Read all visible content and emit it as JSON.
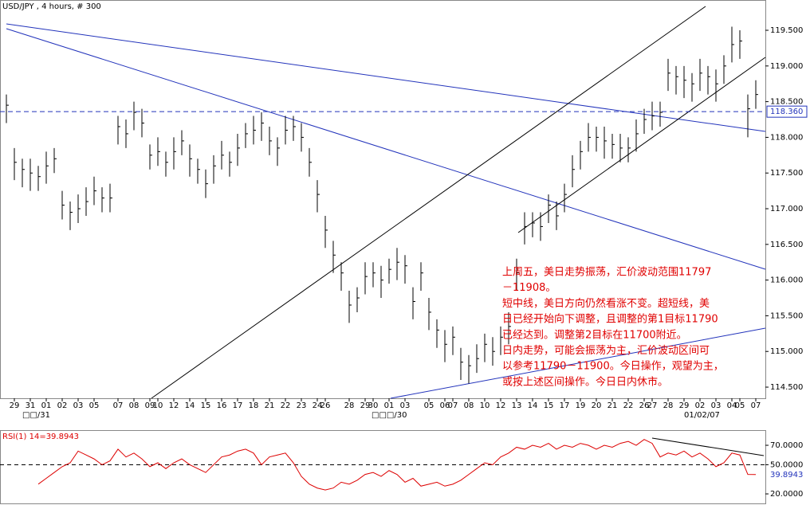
{
  "chart_data": [
    {
      "type": "ohlc",
      "title": "USD/JPY , 4 hours, # 300",
      "color": "#000000",
      "categories": [
        null,
        "29",
        null,
        "31",
        null,
        "01",
        null,
        "02",
        null,
        "03",
        null,
        "05",
        null,
        null,
        "07",
        null,
        "08",
        null,
        "09",
        "10",
        null,
        "12",
        null,
        "14",
        null,
        "15",
        null,
        "16",
        null,
        "17",
        null,
        "18",
        null,
        "21",
        null,
        "22",
        null,
        "23",
        null,
        "24",
        "26",
        null,
        null,
        "28",
        null,
        "29",
        "30",
        null,
        "01",
        null,
        "03",
        null,
        null,
        "05",
        null,
        "06",
        "07",
        null,
        "08",
        null,
        "10",
        null,
        "12",
        null,
        "13",
        null,
        "14",
        null,
        "15",
        null,
        "17",
        null,
        "19",
        null,
        "20",
        null,
        "21",
        null,
        "22",
        null,
        "26",
        "27",
        null,
        "28",
        null,
        "29",
        null,
        "02",
        null,
        "03",
        null,
        "04",
        "05",
        null,
        "07"
      ],
      "period_labels": [
        "□□/31",
        "□□□/30",
        "01/02/07"
      ],
      "high": [
        118.6,
        117.85,
        117.7,
        117.7,
        117.6,
        117.8,
        117.85,
        117.25,
        117.1,
        117.2,
        117.3,
        117.45,
        117.3,
        117.35,
        118.3,
        118.25,
        118.5,
        118.4,
        117.9,
        118.0,
        117.8,
        118.0,
        118.1,
        117.9,
        117.7,
        117.55,
        117.75,
        117.95,
        117.8,
        118.05,
        118.2,
        118.3,
        118.35,
        118.15,
        118.0,
        118.3,
        118.3,
        118.2,
        117.85,
        117.4,
        116.9,
        116.55,
        116.25,
        115.85,
        115.9,
        116.25,
        116.25,
        116.2,
        116.3,
        116.45,
        116.35,
        115.9,
        116.25,
        115.75,
        115.45,
        115.3,
        115.35,
        115.05,
        114.95,
        115.1,
        115.25,
        115.2,
        115.35,
        115.55,
        116.3,
        116.95,
        116.95,
        116.95,
        117.2,
        117.1,
        117.35,
        117.75,
        117.95,
        118.2,
        118.15,
        118.15,
        118.05,
        118.05,
        118.0,
        118.25,
        118.4,
        118.5,
        118.5,
        119.1,
        119.0,
        119.0,
        118.9,
        119.1,
        119.0,
        118.95,
        119.15,
        119.55,
        119.5,
        118.6,
        118.8
      ],
      "low": [
        118.2,
        117.4,
        117.3,
        117.25,
        117.25,
        117.35,
        117.5,
        116.85,
        116.7,
        116.8,
        116.9,
        117.05,
        116.95,
        116.95,
        117.9,
        117.85,
        118.1,
        118.0,
        117.55,
        117.6,
        117.45,
        117.55,
        117.75,
        117.45,
        117.35,
        117.15,
        117.35,
        117.55,
        117.45,
        117.6,
        117.85,
        117.9,
        117.95,
        117.75,
        117.6,
        117.9,
        117.95,
        117.8,
        117.45,
        116.95,
        116.45,
        116.1,
        115.85,
        115.4,
        115.55,
        115.8,
        115.9,
        115.75,
        115.95,
        116.0,
        115.95,
        115.45,
        115.85,
        115.3,
        115.05,
        114.85,
        114.95,
        114.6,
        114.55,
        114.7,
        114.85,
        114.8,
        114.95,
        115.1,
        115.85,
        116.5,
        116.6,
        116.55,
        116.8,
        116.7,
        116.95,
        117.3,
        117.55,
        117.8,
        117.8,
        117.7,
        117.7,
        117.65,
        117.65,
        117.8,
        118.05,
        118.1,
        118.15,
        118.65,
        118.6,
        118.55,
        118.5,
        118.65,
        118.6,
        118.5,
        118.75,
        119.05,
        119.1,
        118.0,
        118.4
      ],
      "close": [
        118.45,
        117.65,
        117.55,
        117.5,
        117.45,
        117.6,
        117.7,
        117.05,
        116.95,
        117.0,
        117.1,
        117.25,
        117.15,
        117.15,
        118.15,
        118.05,
        118.35,
        118.2,
        117.75,
        117.8,
        117.65,
        117.8,
        117.95,
        117.7,
        117.55,
        117.35,
        117.6,
        117.75,
        117.65,
        117.85,
        118.05,
        118.1,
        118.2,
        117.95,
        117.85,
        118.1,
        118.15,
        118.0,
        117.65,
        117.2,
        116.7,
        116.35,
        116.1,
        115.65,
        115.75,
        116.05,
        116.1,
        116.0,
        116.15,
        116.25,
        116.2,
        115.7,
        116.1,
        115.55,
        115.3,
        115.1,
        115.2,
        114.85,
        114.8,
        114.9,
        115.1,
        115.0,
        115.2,
        115.35,
        116.1,
        116.75,
        116.8,
        116.75,
        117.05,
        116.9,
        117.2,
        117.55,
        117.8,
        118.0,
        118.0,
        117.95,
        117.9,
        117.85,
        117.85,
        118.05,
        118.25,
        118.3,
        118.35,
        118.9,
        118.85,
        118.8,
        118.75,
        118.9,
        118.85,
        118.75,
        119.0,
        119.3,
        119.35,
        118.4,
        118.6
      ],
      "ylim": [
        114.344,
        119.835
      ],
      "yticks": [
        {
          "value": 114.5,
          "label": "114.500"
        },
        {
          "value": 115,
          "label": "115.000"
        },
        {
          "value": 115.5,
          "label": "115.500"
        },
        {
          "value": 116,
          "label": "116.000"
        },
        {
          "value": 116.5,
          "label": "116.500"
        },
        {
          "value": 117,
          "label": "117.000"
        },
        {
          "value": 117.5,
          "label": "117.500"
        },
        {
          "value": 118,
          "label": "118.000"
        },
        {
          "value": 118.5,
          "label": "118.500"
        },
        {
          "value": 119,
          "label": "119.000"
        },
        {
          "value": 119.5,
          "label": "119.500"
        }
      ],
      "reference_line": {
        "value": 118.36,
        "label": "118.360"
      },
      "annotation": [
        "上周五，美日走势振荡，汇价波动范围11797",
        "－11908。",
        "短中线，美日方向仍然看涨不变。超短线，美",
        "日已经开始向下调整，且调整的第1目标11790",
        "已经达到。调整第2目标在11700附近。",
        "日内走势，可能会振荡为主，汇价波动区间可",
        "以参考11790－11900。今日操作，观望为主，",
        "或按上述区间操作。今日日内休市。"
      ]
    },
    {
      "type": "line",
      "title": "RSI(1) 14=39.8943",
      "color": "#dd0000",
      "values": [
        null,
        null,
        null,
        null,
        30,
        36,
        42,
        48,
        52,
        64,
        60,
        56,
        50,
        54,
        66,
        58,
        62,
        56,
        48,
        52,
        46,
        52,
        56,
        50,
        46,
        42,
        50,
        58,
        60,
        64,
        66,
        62,
        50,
        58,
        60,
        62,
        52,
        38,
        30,
        26,
        24,
        26,
        32,
        30,
        34,
        40,
        42,
        38,
        44,
        40,
        32,
        36,
        28,
        30,
        32,
        28,
        30,
        34,
        40,
        46,
        52,
        50,
        58,
        62,
        68,
        66,
        70,
        68,
        72,
        66,
        70,
        68,
        72,
        70,
        66,
        70,
        68,
        72,
        74,
        70,
        76,
        72,
        58,
        62,
        60,
        64,
        58,
        62,
        56,
        48,
        52,
        62,
        60,
        40,
        39.8943
      ],
      "ylim": [
        10.2,
        85.6
      ],
      "yticks": [
        {
          "value": 20,
          "label": "20.0000"
        },
        {
          "value": 50,
          "label": "50.0000"
        },
        {
          "value": 70,
          "label": "70.0000"
        }
      ],
      "reference_line": 50
    }
  ]
}
